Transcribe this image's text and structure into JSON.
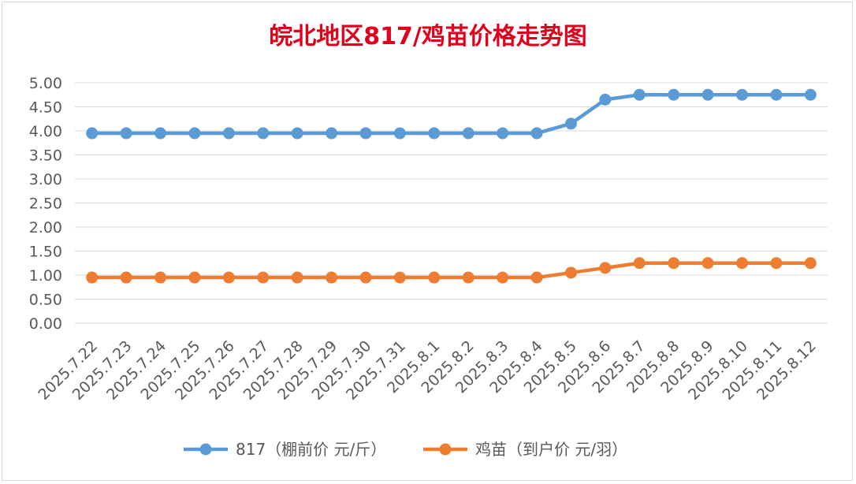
{
  "chart_data": {
    "type": "line",
    "title": "皖北地区817/鸡苗价格走势图",
    "xlabel": "",
    "ylabel": "",
    "categories": [
      "2025.7.22",
      "2025.7.23",
      "2025.7.24",
      "2025.7.25",
      "2025.7.26",
      "2025.7.27",
      "2025.7.28",
      "2025.7.29",
      "2025.7.30",
      "2025.7.31",
      "2025.8.1",
      "2025.8.2",
      "2025.8.3",
      "2025.8.4",
      "2025.8.5",
      "2025.8.6",
      "2025.8.7",
      "2025.8.8",
      "2025.8.9",
      "2025.8.10",
      "2025.8.11",
      "2025.8.12"
    ],
    "ylim": [
      0,
      5
    ],
    "yticks": [
      "0.00",
      "0.50",
      "1.00",
      "1.50",
      "2.00",
      "2.50",
      "3.00",
      "3.50",
      "4.00",
      "4.50",
      "5.00"
    ],
    "grid": true,
    "legend_position": "bottom",
    "series": [
      {
        "name": "817（棚前价 元/斤）",
        "color": "#5b9bd5",
        "values": [
          3.95,
          3.95,
          3.95,
          3.95,
          3.95,
          3.95,
          3.95,
          3.95,
          3.95,
          3.95,
          3.95,
          3.95,
          3.95,
          3.95,
          4.15,
          4.65,
          4.75,
          4.75,
          4.75,
          4.75,
          4.75,
          4.75
        ]
      },
      {
        "name": "鸡苗（到户价 元/羽）",
        "color": "#ed7d31",
        "values": [
          0.95,
          0.95,
          0.95,
          0.95,
          0.95,
          0.95,
          0.95,
          0.95,
          0.95,
          0.95,
          0.95,
          0.95,
          0.95,
          0.95,
          1.05,
          1.15,
          1.25,
          1.25,
          1.25,
          1.25,
          1.25,
          1.25
        ]
      }
    ],
    "colors": {
      "title": "#e0001b",
      "axis_text": "#595959",
      "grid": "#d9d9d9"
    }
  }
}
